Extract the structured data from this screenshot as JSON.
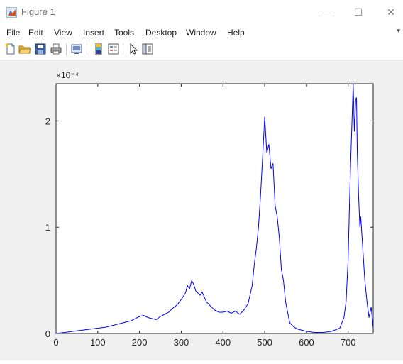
{
  "window": {
    "title": "Figure 1",
    "minimize_glyph": "—",
    "maximize_glyph": "☐",
    "close_glyph": "✕"
  },
  "menu": {
    "items": [
      "File",
      "Edit",
      "View",
      "Insert",
      "Tools",
      "Desktop",
      "Window",
      "Help"
    ]
  },
  "toolbar": {
    "buttons": [
      {
        "name": "new-figure-icon"
      },
      {
        "name": "open-file-icon"
      },
      {
        "name": "save-icon"
      },
      {
        "name": "print-icon"
      },
      {
        "name": "link-plot-icon"
      },
      {
        "name": "insert-colorbar-icon"
      },
      {
        "name": "insert-legend-icon"
      },
      {
        "name": "edit-plot-arrow-icon"
      },
      {
        "name": "property-inspector-icon"
      }
    ]
  },
  "colors": {
    "line": "#0000ff",
    "figure_background": "#f0f0f0",
    "axes_background": "#ffffff"
  },
  "chart_data": {
    "type": "line",
    "title": "",
    "xlabel": "",
    "ylabel": "",
    "exponent_label": "×10⁻⁴",
    "xlim": [
      0,
      760
    ],
    "ylim": [
      0,
      2.35
    ],
    "y_unit_scale": "1e-4",
    "xticks": [
      0,
      100,
      200,
      300,
      400,
      500,
      600,
      700
    ],
    "yticks": [
      0,
      1,
      2
    ],
    "grid": false,
    "legend": "none",
    "series": [
      {
        "x": [
          0,
          20,
          40,
          60,
          80,
          100,
          120,
          140,
          160,
          180,
          200,
          210,
          220,
          230,
          240,
          250,
          260,
          270,
          280,
          290,
          300,
          310,
          315,
          320,
          325,
          330,
          335,
          340,
          345,
          350,
          360,
          370,
          380,
          390,
          400,
          410,
          420,
          430,
          440,
          450,
          460,
          470,
          475,
          480,
          485,
          490,
          495,
          500,
          505,
          510,
          515,
          520,
          525,
          530,
          535,
          540,
          545,
          550,
          555,
          560,
          570,
          580,
          590,
          600,
          620,
          640,
          660,
          680,
          690,
          695,
          700,
          703,
          706,
          710,
          712,
          715,
          718,
          720,
          722,
          725,
          728,
          730,
          735,
          740,
          745,
          750,
          755,
          760
        ],
        "y": [
          0.0,
          0.01,
          0.02,
          0.03,
          0.04,
          0.05,
          0.06,
          0.08,
          0.1,
          0.12,
          0.16,
          0.17,
          0.15,
          0.14,
          0.13,
          0.16,
          0.18,
          0.2,
          0.24,
          0.27,
          0.32,
          0.38,
          0.45,
          0.42,
          0.5,
          0.46,
          0.4,
          0.38,
          0.36,
          0.39,
          0.3,
          0.26,
          0.22,
          0.2,
          0.2,
          0.21,
          0.19,
          0.21,
          0.18,
          0.22,
          0.28,
          0.45,
          0.65,
          0.8,
          1.0,
          1.3,
          1.65,
          2.04,
          1.7,
          1.78,
          1.55,
          1.6,
          1.2,
          1.1,
          0.9,
          0.6,
          0.5,
          0.3,
          0.2,
          0.1,
          0.06,
          0.04,
          0.03,
          0.02,
          0.01,
          0.01,
          0.02,
          0.05,
          0.15,
          0.3,
          0.7,
          1.2,
          1.6,
          2.1,
          2.35,
          1.9,
          2.2,
          2.22,
          1.7,
          1.3,
          1.0,
          1.1,
          0.8,
          0.5,
          0.3,
          0.15,
          0.25,
          0.05
        ]
      }
    ]
  }
}
